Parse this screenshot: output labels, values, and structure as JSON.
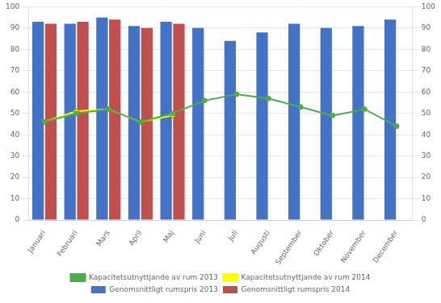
{
  "chart_data": {
    "type": "bar",
    "categories": [
      "Januari",
      "Februari",
      "Mars",
      "April",
      "Maj",
      "Juni",
      "Juli",
      "Augusti",
      "September",
      "Oktober",
      "November",
      "December"
    ],
    "series": [
      {
        "name": "Genomsnittligt rumspris 2013",
        "type": "bar",
        "color": "#4472C4",
        "values": [
          93,
          92,
          95,
          91,
          93,
          90,
          84,
          88,
          92,
          90,
          91,
          94
        ]
      },
      {
        "name": "Genomsnittligt rumspris 2014",
        "type": "bar",
        "color": "#C0504D",
        "values": [
          92,
          93,
          94,
          90,
          92,
          null,
          null,
          null,
          null,
          null,
          null,
          null
        ]
      },
      {
        "name": "Kapacitetsutnyttjande av rum 2013",
        "type": "line",
        "color": "#4EAC4C",
        "marker": "circle",
        "axis": "y2",
        "values": [
          46,
          50,
          52,
          46,
          50,
          56,
          59,
          57,
          53,
          49,
          52,
          44
        ]
      },
      {
        "name": "Kapacitetsutnyttjande av rum 2014",
        "type": "line",
        "color": "#FFFF00",
        "marker": "circle",
        "axis": "y2",
        "values": [
          46,
          51,
          52,
          46,
          49,
          null,
          null,
          null,
          null,
          null,
          null,
          null
        ]
      }
    ],
    "ylim": [
      0,
      100
    ],
    "yticks": [
      0,
      10,
      20,
      30,
      40,
      50,
      60,
      70,
      80,
      90,
      100
    ],
    "y2lim": [
      0,
      100
    ],
    "y2ticks": [
      0,
      10,
      20,
      30,
      40,
      50,
      60,
      70,
      80,
      90,
      100
    ],
    "grid": true,
    "legend": "bottom"
  }
}
